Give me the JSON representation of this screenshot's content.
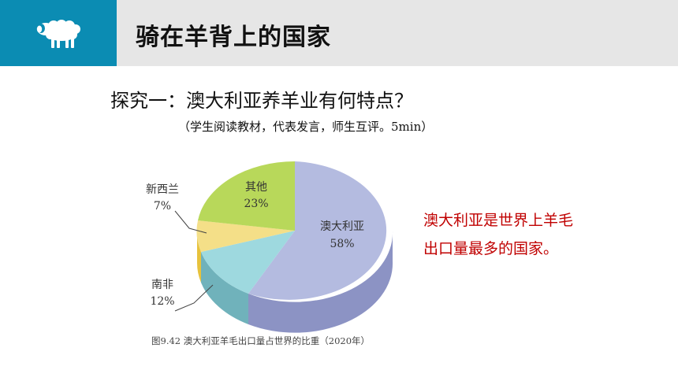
{
  "header": {
    "title": "骑在羊背上的国家",
    "icon": "sheep-icon"
  },
  "question": "探究一：澳大利亚养羊业有何特点？",
  "instruction": "（学生阅读教材，代表发言，师生互评。5min）",
  "conclusion": {
    "line1": "澳大利亚是世界上羊毛",
    "line2": "出口量最多的国家。"
  },
  "chart_data": {
    "type": "pie",
    "title": "",
    "caption": "图9.42  澳大利亚羊毛出口量占世界的比重（2020年）",
    "slices": [
      {
        "label": "澳大利亚",
        "value": "58%",
        "pct": 58,
        "color": "#b4bbe0"
      },
      {
        "label": "南非",
        "value": "12%",
        "pct": 12,
        "color": "#9ed9df"
      },
      {
        "label": "新西兰",
        "value": "7%",
        "pct": 7,
        "color": "#f4df88"
      },
      {
        "label": "其他",
        "value": "23%",
        "pct": 23,
        "color": "#b8d85a"
      }
    ]
  },
  "colors": {
    "header_accent": "#0b8cb3",
    "header_bar": "#e6e6e6",
    "highlight": "#c00000"
  }
}
